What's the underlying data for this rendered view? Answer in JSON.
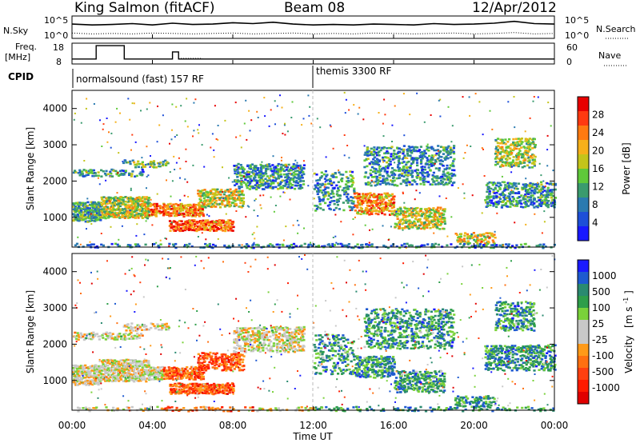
{
  "header": {
    "station": "King Salmon (fitACF)",
    "beam": "Beam 08",
    "date": "12/Apr/2012"
  },
  "noise_panel": {
    "left_label": "N.Sky",
    "right_label": "N.Search",
    "left_ticks": [
      "10^5",
      "10^0"
    ],
    "right_ticks": [
      "10^5",
      "10^0"
    ]
  },
  "freq_panel": {
    "left_label_1": "Freq.",
    "left_label_2": "[MHz]",
    "left_ticks": [
      "18",
      "8"
    ],
    "right_label": "Nave",
    "right_ticks": [
      "60",
      "0"
    ]
  },
  "cpid_panel": {
    "label": "CPID",
    "segments": [
      "normalsound (fast) 157 RF",
      "themis 3300 RF"
    ]
  },
  "power_panel": {
    "ylabel": "Slant Range [km]",
    "yticks": [
      "1000",
      "2000",
      "3000",
      "4000"
    ],
    "colorbar_label": "Power [dB]",
    "colorbar_ticks": [
      "4",
      "8",
      "12",
      "16",
      "20",
      "24",
      "28"
    ],
    "colors": [
      "#1818ff",
      "#1d4fd8",
      "#2a7ab0",
      "#3a9b6e",
      "#5fc93a",
      "#c4c41a",
      "#f6b01a",
      "#ff7a10",
      "#ff3a10",
      "#e80000"
    ]
  },
  "velocity_panel": {
    "ylabel": "Slant Range [km]",
    "yticks": [
      "1000",
      "2000",
      "3000",
      "4000"
    ],
    "colorbar_label": "Velocity",
    "colorbar_unit": "[m s",
    "colorbar_unit_exp": "-1",
    "colorbar_unit_close": "]",
    "colorbar_ticks": [
      "1000",
      "500",
      "100",
      "25",
      "-25",
      "-100",
      "-500",
      "-1000"
    ],
    "colors": [
      "#1a1aff",
      "#1e5ad0",
      "#2a8a70",
      "#2e9e4a",
      "#7ad23a",
      "#c8c8c8",
      "#c8c8c8",
      "#ff9a18",
      "#ff7010",
      "#ff4010",
      "#ff1a00",
      "#e00000"
    ]
  },
  "x_axis": {
    "ticks": [
      "00:00",
      "04:00",
      "08:00",
      "12:00",
      "16:00",
      "20:00",
      "00:00"
    ],
    "label": "Time UT"
  },
  "chart_data": [
    {
      "type": "line",
      "name": "noise",
      "x_unit": "hours UT",
      "x": [
        0,
        1,
        2,
        3,
        4,
        5,
        6,
        7,
        8,
        9,
        10,
        11,
        12,
        13,
        14,
        15,
        16,
        17,
        18,
        19,
        20,
        21,
        22,
        23,
        24
      ],
      "series": [
        {
          "values": [
            3.2,
            3.0,
            3.1,
            3.3,
            3.0,
            3.4,
            3.1,
            3.2,
            3.5,
            3.3,
            3.6,
            3.2,
            3.0,
            3.1,
            3.0,
            3.2,
            3.1,
            3.0,
            3.3,
            3.1,
            3.2,
            3.4,
            3.8,
            3.3,
            3.2
          ]
        },
        {
          "values": [
            1.2,
            1.0,
            1.1,
            1.0,
            1.2,
            1.1,
            1.0,
            1.1,
            1.2,
            1.0,
            1.1,
            1.2,
            1.0,
            1.1,
            1.0,
            1.2,
            1.1,
            1.0,
            1.1,
            1.2,
            1.0,
            1.1,
            1.3,
            1.0,
            1.1
          ]
        }
      ],
      "ylim": [
        0,
        5
      ],
      "yscale": "log"
    },
    {
      "type": "line",
      "name": "frequency",
      "x_unit": "hours UT",
      "x": [
        0,
        1.2,
        1.2,
        2.6,
        2.6,
        5.0,
        5.0,
        5.3,
        5.3,
        24
      ],
      "series": [
        {
          "values": [
            10.4,
            10.4,
            16.8,
            16.8,
            10.4,
            10.4,
            13.8,
            13.8,
            10.4,
            10.4
          ]
        }
      ],
      "ylim": [
        8,
        18
      ]
    },
    {
      "type": "heatmap",
      "name": "power",
      "x_range": [
        0,
        24
      ],
      "y_range": [
        180,
        4500
      ],
      "value_range": [
        0,
        30
      ],
      "legend": "right"
    },
    {
      "type": "heatmap",
      "name": "velocity",
      "x_range": [
        0,
        24
      ],
      "y_range": [
        180,
        4500
      ],
      "value_range": [
        -1000,
        1000
      ],
      "legend": "right"
    }
  ]
}
